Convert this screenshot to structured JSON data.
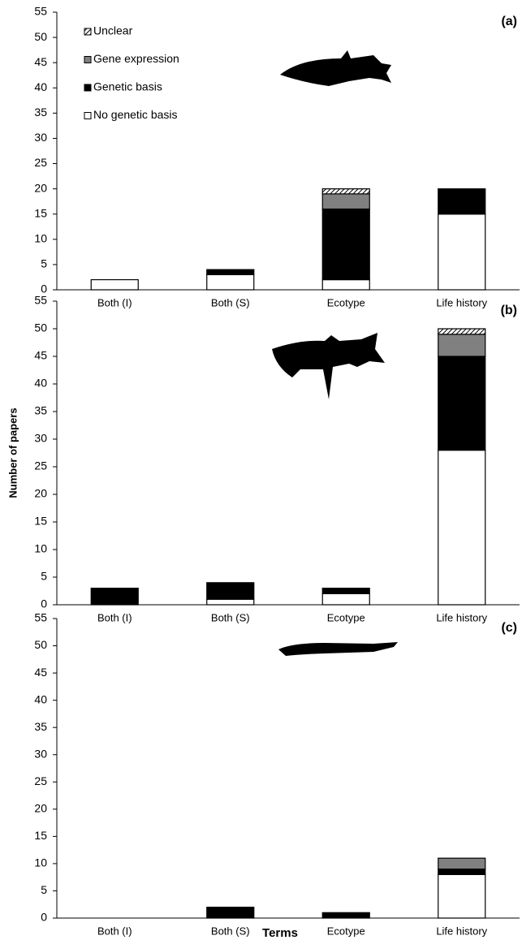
{
  "chart_data": [
    {
      "type": "bar",
      "panel_label": "(a)",
      "categories": [
        "Both (I)",
        "Both (S)",
        "Ecotype",
        "Life history"
      ],
      "series": [
        {
          "name": "No genetic basis",
          "color": "#ffffff",
          "values": [
            2,
            3,
            2,
            15
          ]
        },
        {
          "name": "Genetic basis",
          "color": "#000000",
          "values": [
            0,
            1,
            14,
            5
          ]
        },
        {
          "name": "Gene expression",
          "color": "#808080",
          "values": [
            0,
            0,
            3,
            0
          ]
        },
        {
          "name": "Unclear",
          "color": "#c8c8c8",
          "values": [
            0,
            0,
            1,
            0
          ]
        }
      ],
      "ylim": [
        0,
        55
      ],
      "yticks": [
        0,
        5,
        10,
        15,
        20,
        25,
        30,
        35,
        40,
        45,
        50,
        55
      ],
      "legend": true
    },
    {
      "type": "bar",
      "panel_label": "(b)",
      "ylabel": "Number of papers",
      "categories": [
        "Both (I)",
        "Both (S)",
        "Ecotype",
        "Life history"
      ],
      "series": [
        {
          "name": "No genetic basis",
          "color": "#ffffff",
          "values": [
            0,
            1,
            2,
            28
          ]
        },
        {
          "name": "Genetic basis",
          "color": "#000000",
          "values": [
            3,
            3,
            1,
            17
          ]
        },
        {
          "name": "Gene expression",
          "color": "#808080",
          "values": [
            0,
            0,
            0,
            4
          ]
        },
        {
          "name": "Unclear",
          "color": "#c8c8c8",
          "values": [
            0,
            0,
            0,
            1
          ]
        }
      ],
      "ylim": [
        0,
        55
      ],
      "yticks": [
        0,
        5,
        10,
        15,
        20,
        25,
        30,
        35,
        40,
        45,
        50,
        55
      ],
      "legend": false
    },
    {
      "type": "bar",
      "panel_label": "(c)",
      "xlabel": "Terms",
      "categories": [
        "Both (I)",
        "Both (S)",
        "Ecotype",
        "Life history"
      ],
      "series": [
        {
          "name": "No genetic basis",
          "color": "#ffffff",
          "values": [
            0,
            0,
            0,
            8
          ]
        },
        {
          "name": "Genetic basis",
          "color": "#000000",
          "values": [
            0,
            2,
            1,
            1
          ]
        },
        {
          "name": "Gene expression",
          "color": "#808080",
          "values": [
            0,
            0,
            0,
            2
          ]
        },
        {
          "name": "Unclear",
          "color": "#c8c8c8",
          "values": [
            0,
            0,
            0,
            0
          ]
        }
      ],
      "ylim": [
        0,
        55
      ],
      "yticks": [
        0,
        5,
        10,
        15,
        20,
        25,
        30,
        35,
        40,
        45,
        50,
        55
      ],
      "legend": false
    }
  ]
}
